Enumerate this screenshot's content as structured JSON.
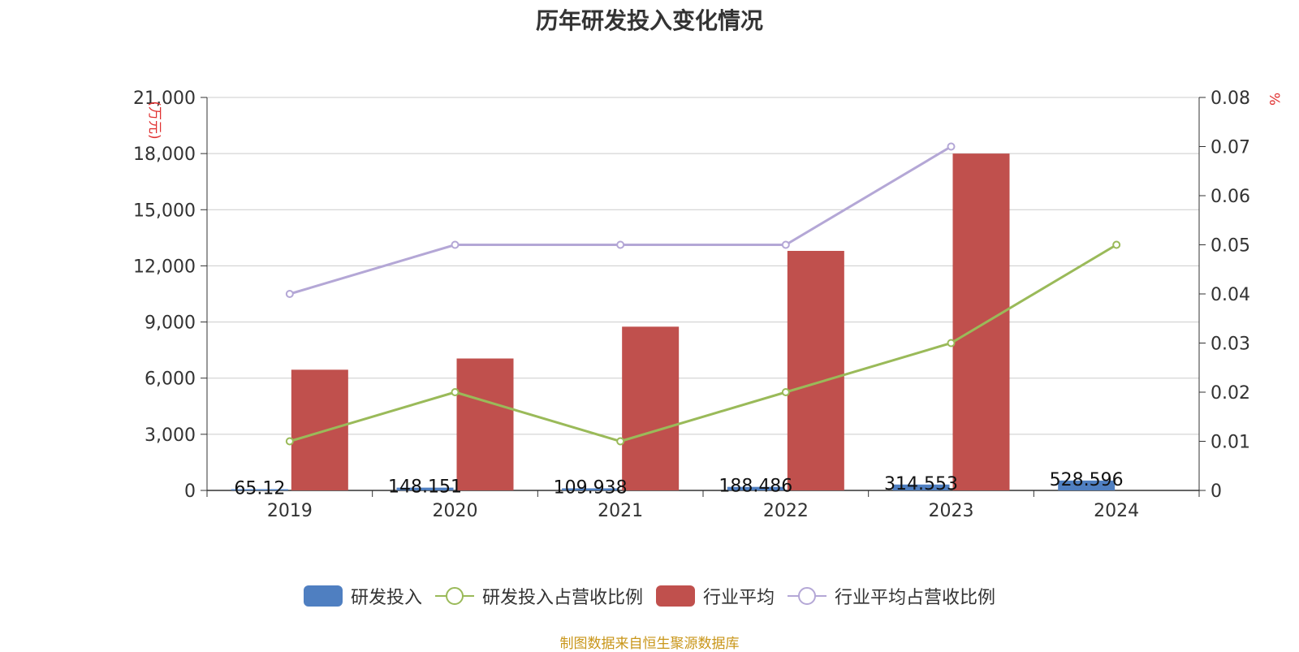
{
  "chart_data": {
    "type": "bar",
    "title": "历年研发投入变化情况",
    "categories": [
      "2019",
      "2020",
      "2021",
      "2022",
      "2023",
      "2024"
    ],
    "y_left": {
      "unit_label": "(万元)",
      "range": [
        0,
        21000
      ],
      "ticks": [
        0,
        3000,
        6000,
        9000,
        12000,
        15000,
        18000,
        21000
      ],
      "tick_labels": [
        "0",
        "3,000",
        "6,000",
        "9,000",
        "12,000",
        "15,000",
        "18,000",
        "21,000"
      ]
    },
    "y_right": {
      "unit_label": "%",
      "range": [
        0,
        0.08
      ],
      "ticks": [
        0,
        0.01,
        0.02,
        0.03,
        0.04,
        0.05,
        0.06,
        0.07,
        0.08
      ],
      "tick_labels": [
        "0",
        "0.01",
        "0.02",
        "0.03",
        "0.04",
        "0.05",
        "0.06",
        "0.07",
        "0.08"
      ]
    },
    "grid": true,
    "legend_position": "bottom",
    "series": [
      {
        "name": "研发投入",
        "type": "bar",
        "axis": "left",
        "color": "#4f7fc1",
        "values": [
          65.12,
          148.151,
          109.938,
          188.486,
          314.553,
          528.596
        ],
        "labels": [
          "65.12",
          "148.151",
          "109.938",
          "188.486",
          "314.553",
          "528.596"
        ]
      },
      {
        "name": "研发投入占营收比例",
        "type": "line",
        "axis": "right",
        "color": "#9aba59",
        "values": [
          0.01,
          0.02,
          0.01,
          0.02,
          0.03,
          0.05
        ]
      },
      {
        "name": "行业平均",
        "type": "bar",
        "axis": "left",
        "color": "#c0504d",
        "values": [
          6450,
          7050,
          8750,
          12800,
          18000,
          null
        ]
      },
      {
        "name": "行业平均占营收比例",
        "type": "line",
        "axis": "right",
        "color": "#b4a7d6",
        "values": [
          0.04,
          0.05,
          0.05,
          0.05,
          0.07,
          null
        ]
      }
    ]
  },
  "source_note": "制图数据来自恒生聚源数据库"
}
